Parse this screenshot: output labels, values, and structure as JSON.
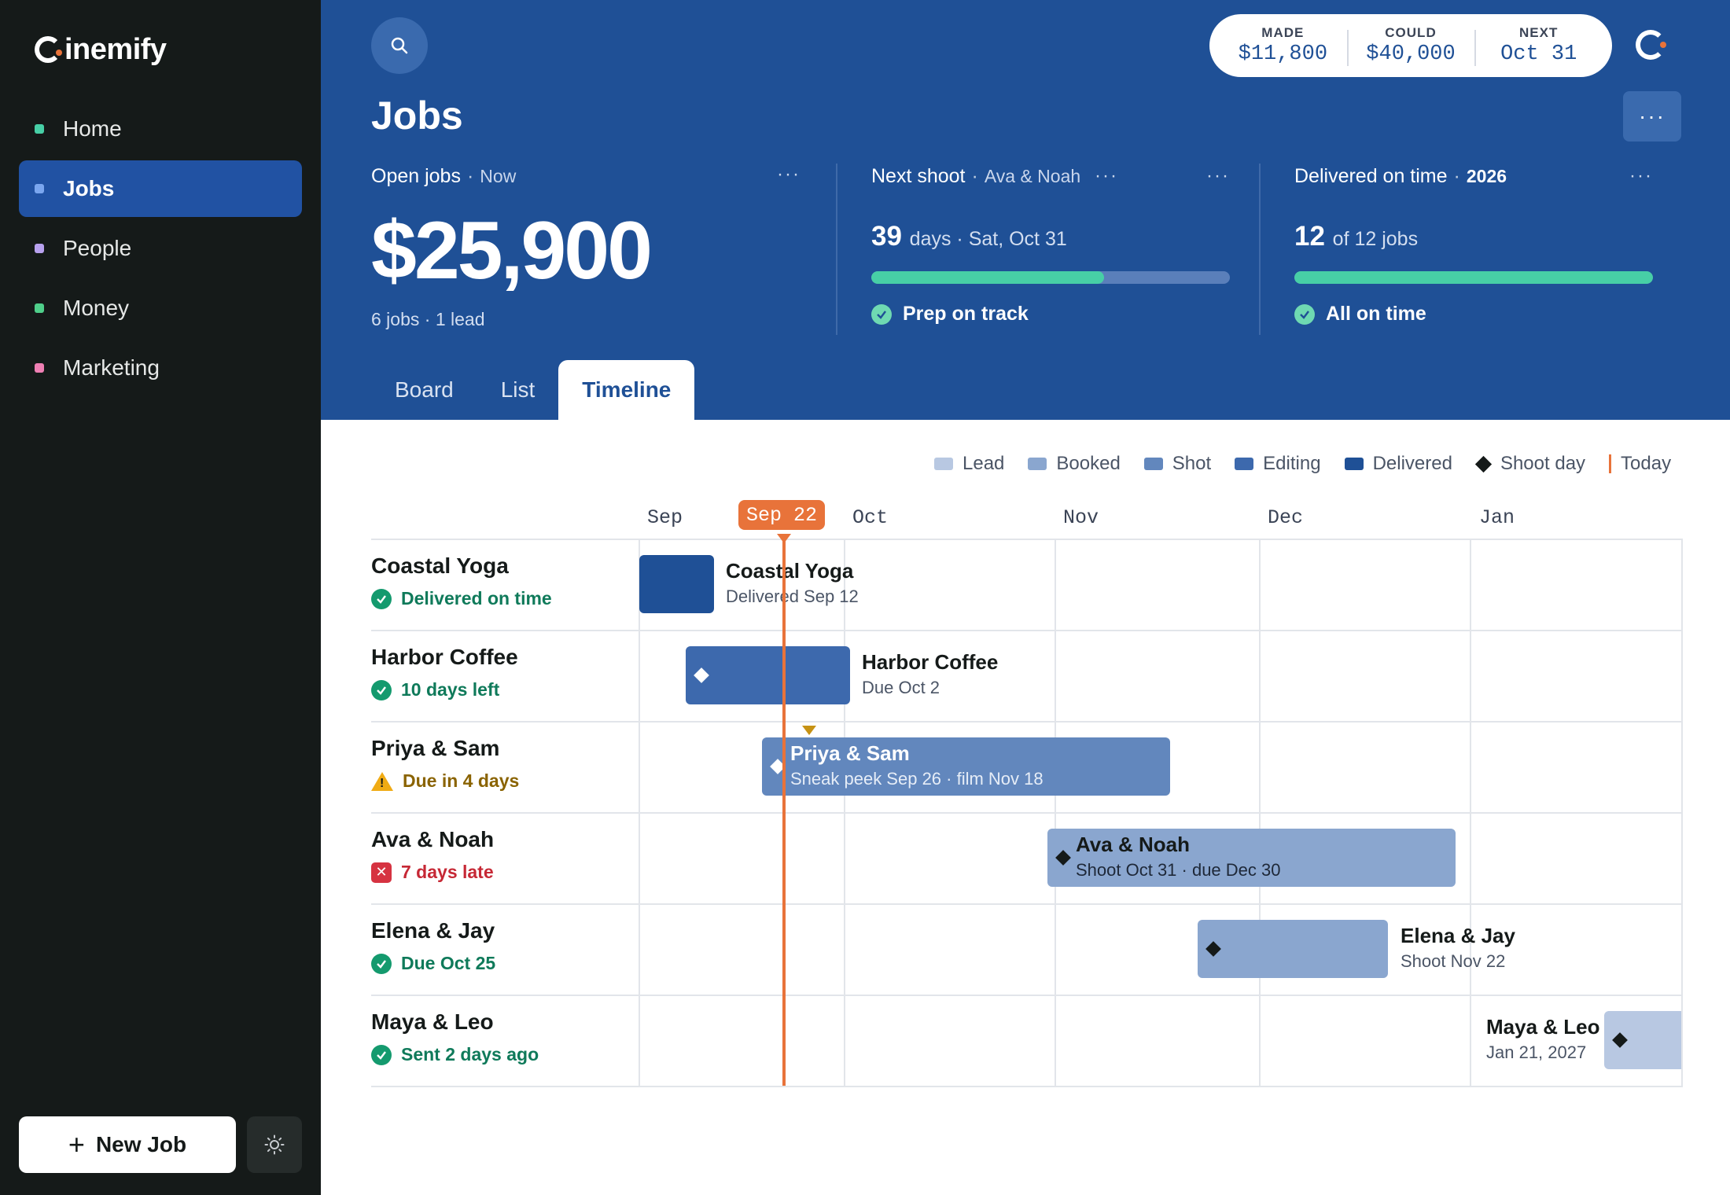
{
  "app": {
    "logo_text": "inemify",
    "nav": [
      {
        "label": "Home",
        "color": "#47cfa6"
      },
      {
        "label": "Jobs",
        "color": "#7aa6ef"
      },
      {
        "label": "People",
        "color": "#b7a1ee"
      },
      {
        "label": "Money",
        "color": "#4fcf8a"
      },
      {
        "label": "Marketing",
        "color": "#ee7fb3"
      }
    ],
    "new_job_label": "New Job"
  },
  "header": {
    "title": "Jobs",
    "stats": [
      {
        "label": "MADE",
        "value": "$11,800"
      },
      {
        "label": "COULD",
        "value": "$40,000"
      },
      {
        "label": "NEXT",
        "value": "Oct 31"
      }
    ],
    "more_label": "···"
  },
  "cards": {
    "open_jobs": {
      "title": "Open jobs",
      "sub": "Now",
      "amount": "$25,900",
      "foot": "6 jobs · 1 lead"
    },
    "next_shoot": {
      "title": "Next shoot",
      "sub": "Ava & Noah",
      "metric": "39",
      "metric_rest": "days · Sat, Oct 31",
      "progress": 0.65,
      "status": "Prep on track"
    },
    "delivered": {
      "title": "Delivered on time",
      "sub": "2026",
      "metric": "12",
      "metric_rest": "of 12 jobs",
      "progress": 1.0,
      "status": "All on time"
    }
  },
  "tabs": [
    {
      "label": "Board"
    },
    {
      "label": "List"
    },
    {
      "label": "Timeline",
      "active": true
    }
  ],
  "legend": [
    {
      "label": "Lead",
      "color": "#b8c8e2"
    },
    {
      "label": "Booked",
      "color": "#8aa6cf"
    },
    {
      "label": "Shot",
      "color": "#6287bd"
    },
    {
      "label": "Editing",
      "color": "#3d69ad"
    },
    {
      "label": "Delivered",
      "color": "#1f5096"
    },
    {
      "label": "Shoot day"
    },
    {
      "label": "Today"
    }
  ],
  "timeline": {
    "today_label": "Sep 22",
    "months": [
      "Sep",
      "Oct",
      "Nov",
      "Dec",
      "Jan"
    ],
    "rows": [
      {
        "name": "Coastal Yoga",
        "status": "Delivered on time",
        "status_type": "ok",
        "bar_title": "Coastal Yoga",
        "bar_sub": "Delivered Sep 12",
        "color": "#1f5096"
      },
      {
        "name": "Harbor Coffee",
        "status": "10 days left",
        "status_type": "ok",
        "bar_title": "Harbor Coffee",
        "bar_sub": "Due Oct 2",
        "color": "#3d69ad"
      },
      {
        "name": "Priya & Sam",
        "status": "Due in 4 days",
        "status_type": "warn",
        "bar_title": "Priya & Sam",
        "bar_sub": "Sneak peek Sep 26 · film Nov 18",
        "color": "#6287bd"
      },
      {
        "name": "Ava & Noah",
        "status": "7 days late",
        "status_type": "late",
        "bar_title": "Ava & Noah",
        "bar_sub": "Shoot Oct 31 · due Dec 30",
        "color": "#8aa6cf"
      },
      {
        "name": "Elena & Jay",
        "status": "Due Oct 25",
        "status_type": "ok",
        "bar_title": "Elena & Jay",
        "bar_sub": "Shoot Nov 22",
        "color": "#8aa6cf"
      },
      {
        "name": "Maya & Leo",
        "status": "Sent 2 days ago",
        "status_type": "ok",
        "bar_title": "Maya & Leo",
        "bar_sub": "Jan 21, 2027",
        "color": "#b8c8e2"
      }
    ]
  }
}
